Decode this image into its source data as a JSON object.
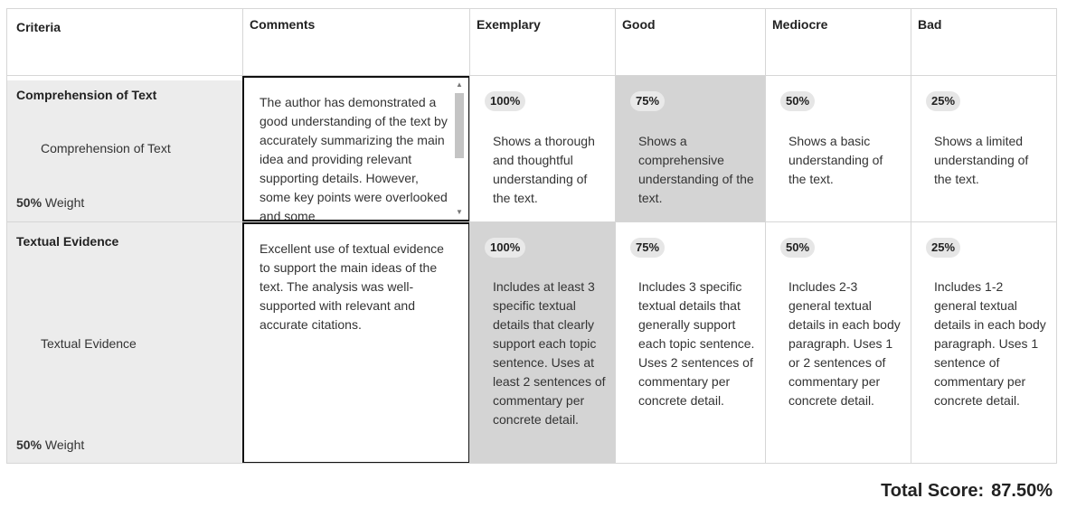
{
  "headers": {
    "criteria": "Criteria",
    "comments": "Comments",
    "levels": [
      "Exemplary",
      "Good",
      "Mediocre",
      "Bad"
    ]
  },
  "rows": [
    {
      "name": "Comprehension of Text",
      "sub": "Comprehension of Text",
      "weight_value": "50%",
      "weight_label": "Weight",
      "comment": "The author has demonstrated a good understanding of the text by accurately summarizing the main idea and providing relevant supporting details. However, some key points were overlooked and some",
      "selected_level": 1,
      "levels": [
        {
          "pct": "100%",
          "desc": "Shows a thorough and thoughtful understanding of the text."
        },
        {
          "pct": "75%",
          "desc": "Shows a comprehensive understanding of the text."
        },
        {
          "pct": "50%",
          "desc": "Shows a basic understanding of the text."
        },
        {
          "pct": "25%",
          "desc": "Shows a limited understanding of the text."
        }
      ]
    },
    {
      "name": "Textual Evidence",
      "sub": "Textual Evidence",
      "weight_value": "50%",
      "weight_label": "Weight",
      "comment": "Excellent use of textual evidence to support the main ideas of the text. The analysis was well-supported with relevant and accurate citations.",
      "selected_level": 0,
      "levels": [
        {
          "pct": "100%",
          "desc": "Includes at least 3 specific textual details that clearly support each topic sentence. Uses at least 2 sentences of commentary per concrete detail."
        },
        {
          "pct": "75%",
          "desc": "Includes 3 specific textual details that generally support each topic sentence. Uses 2 sentences of commentary per concrete detail."
        },
        {
          "pct": "50%",
          "desc": "Includes 2-3 general textual details in each body paragraph. Uses 1 or 2 sentences of commentary per concrete detail."
        },
        {
          "pct": "25%",
          "desc": "Includes 1-2 general textual details in each body paragraph. Uses 1 sentence of commentary per concrete detail."
        }
      ]
    }
  ],
  "total": {
    "label": "Total Score:",
    "value": "87.50%"
  },
  "icons": {
    "scroll_up": "scroll-up-arrow-icon",
    "scroll_down": "scroll-down-arrow-icon"
  }
}
